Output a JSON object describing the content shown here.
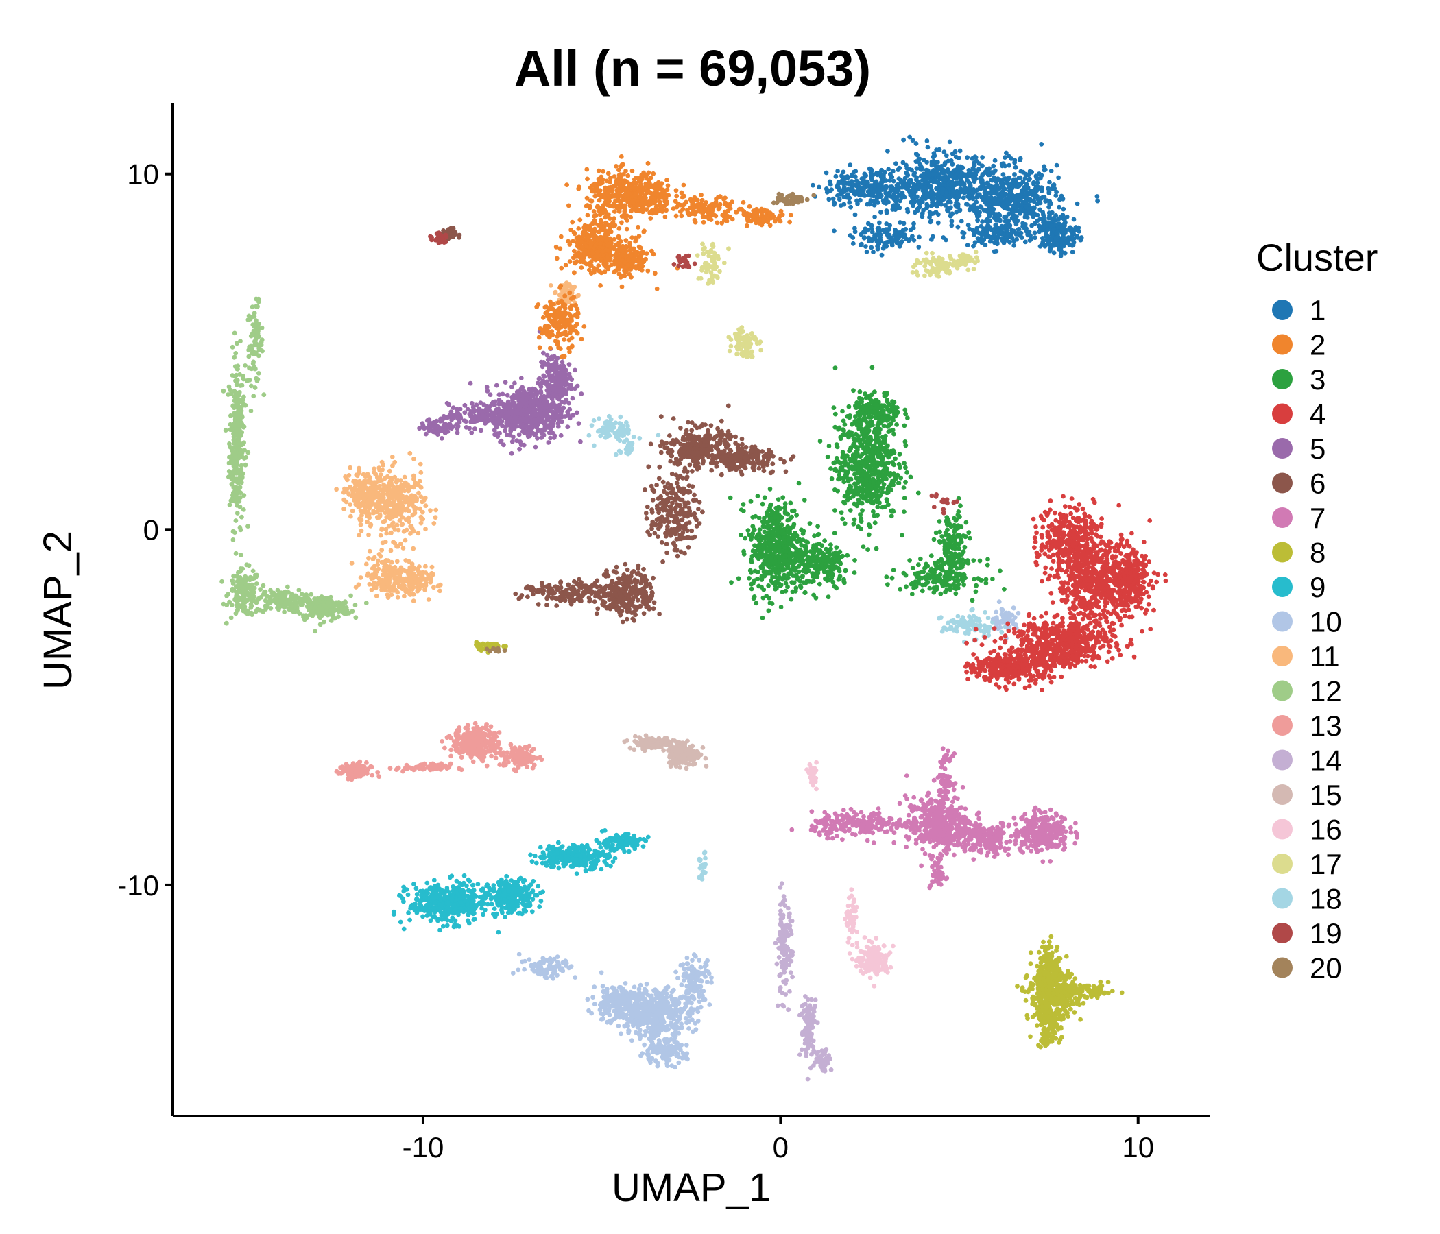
{
  "chart_data": {
    "type": "scatter",
    "title": "All (n = 69,053)",
    "xlabel": "UMAP_1",
    "ylabel": "UMAP_2",
    "xlim": [
      -17.0,
      12.0
    ],
    "ylim": [
      -16.5,
      12.0
    ],
    "xticks": [
      -10,
      0,
      10
    ],
    "yticks": [
      10,
      0,
      -10
    ],
    "xtick_labels": [
      "-10",
      "0",
      "10"
    ],
    "ytick_labels": [
      "10",
      "0",
      "-10"
    ],
    "grid": false,
    "legend": {
      "title": "Cluster",
      "position": "right"
    },
    "series": [
      {
        "name": "1",
        "color": "#1f77b4",
        "center": [
          5.5,
          9.0
        ]
      },
      {
        "name": "2",
        "color": "#f0852d",
        "center": [
          -4.5,
          8.5
        ]
      },
      {
        "name": "3",
        "color": "#2ca13f",
        "center": [
          2.2,
          1.0
        ]
      },
      {
        "name": "4",
        "color": "#d83e3e",
        "center": [
          8.0,
          -2.0
        ]
      },
      {
        "name": "5",
        "color": "#9a6aab",
        "center": [
          -7.0,
          3.5
        ]
      },
      {
        "name": "6",
        "color": "#8c564b",
        "center": [
          -2.5,
          0.0
        ]
      },
      {
        "name": "7",
        "color": "#d17ab4",
        "center": [
          4.5,
          -8.5
        ]
      },
      {
        "name": "8",
        "color": "#bcbd36",
        "center": [
          7.5,
          -13.0
        ]
      },
      {
        "name": "9",
        "color": "#27bccd",
        "center": [
          -8.5,
          -10.0
        ]
      },
      {
        "name": "10",
        "color": "#b1c6e6",
        "center": [
          -3.5,
          -13.5
        ]
      },
      {
        "name": "11",
        "color": "#f9b87c",
        "center": [
          -10.5,
          0.0
        ]
      },
      {
        "name": "12",
        "color": "#9fcc88",
        "center": [
          -14.5,
          -1.0
        ]
      },
      {
        "name": "13",
        "color": "#ef9c9a",
        "center": [
          -9.5,
          -6.5
        ]
      },
      {
        "name": "14",
        "color": "#c4afd3",
        "center": [
          0.5,
          -13.5
        ]
      },
      {
        "name": "15",
        "color": "#d4b9b3",
        "center": [
          -3.0,
          -6.5
        ]
      },
      {
        "name": "16",
        "color": "#f5c6d7",
        "center": [
          2.5,
          -11.5
        ]
      },
      {
        "name": "17",
        "color": "#dcdc8e",
        "center": [
          -1.5,
          6.5
        ]
      },
      {
        "name": "18",
        "color": "#a4d6e4",
        "center": [
          -4.5,
          2.8
        ]
      },
      {
        "name": "19",
        "color": "#b04848",
        "center": [
          -9.5,
          8.5
        ]
      },
      {
        "name": "20",
        "color": "#a3835b",
        "center": [
          0.2,
          9.2
        ]
      }
    ]
  }
}
